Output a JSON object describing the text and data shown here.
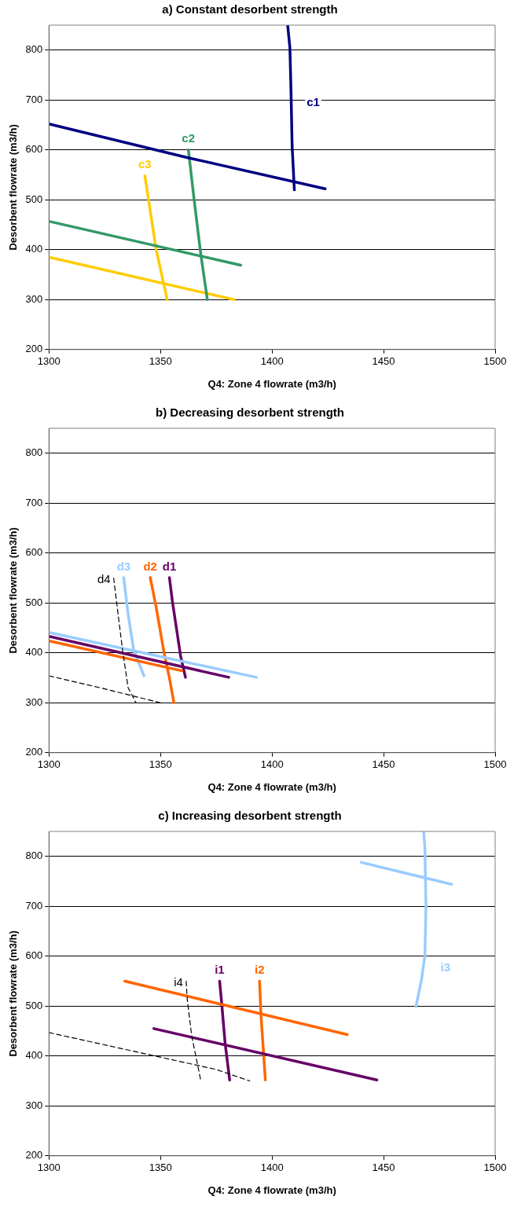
{
  "chart_data": [
    {
      "type": "line",
      "title": "a) Constant desorbent strength",
      "xlabel": "Q4: Zone 4 flowrate (m3/h)",
      "ylabel": "Desorbent flowrate (m3/h)",
      "xlim": [
        1300,
        1500
      ],
      "xticks": [
        1300,
        1350,
        1400,
        1450,
        1500
      ],
      "ylim": [
        200,
        850
      ],
      "yticks": [
        200,
        300,
        400,
        500,
        600,
        700,
        800
      ],
      "grid": "y",
      "legend": false,
      "marker": "none",
      "series": [
        {
          "name": "c1",
          "color": "#000080",
          "x": [
            1407,
            1408,
            1408.5,
            1409,
            1410
          ],
          "values": [
            850,
            805,
            718,
            608,
            520
          ]
        },
        {
          "color": "#000080",
          "x": [
            1300,
            1362.7,
            1423.8
          ],
          "values": [
            652,
            584,
            522
          ]
        },
        {
          "name": "c2",
          "color": "#339966",
          "x": [
            1362.5,
            1365,
            1368,
            1371
          ],
          "values": [
            600,
            503,
            393,
            300
          ]
        },
        {
          "color": "#339966",
          "x": [
            1300,
            1386
          ],
          "values": [
            457,
            369
          ]
        },
        {
          "name": "c3",
          "color": "#ffcc00",
          "x": [
            1343,
            1348,
            1353
          ],
          "values": [
            548,
            402,
            300
          ]
        },
        {
          "color": "#ffcc00",
          "x": [
            1300,
            1383
          ],
          "values": [
            385,
            300
          ]
        }
      ]
    },
    {
      "type": "line",
      "title": "b) Decreasing desorbent strength",
      "xlabel": "Q4: Zone 4 flowrate (m3/h)",
      "ylabel": "Desorbent flowrate (m3/h)",
      "xlim": [
        1300,
        1500
      ],
      "xticks": [
        1300,
        1350,
        1400,
        1450,
        1500
      ],
      "ylim": [
        200,
        850
      ],
      "yticks": [
        200,
        300,
        400,
        500,
        600,
        700,
        800
      ],
      "grid": "y",
      "legend": false,
      "marker": "none",
      "series": [
        {
          "name": "d4",
          "color": "#000000",
          "line_style": "dashed",
          "x": [
            1329,
            1331,
            1333,
            1335.5,
            1339
          ],
          "values": [
            550,
            477,
            405,
            330,
            300
          ]
        },
        {
          "color": "#000000",
          "line_style": "dashed",
          "x": [
            1300,
            1323,
            1350
          ],
          "values": [
            354,
            330,
            300
          ]
        },
        {
          "color": "#99ccff",
          "x": [
            1300,
            1393
          ],
          "values": [
            441,
            351
          ]
        },
        {
          "color": "#660066",
          "x": [
            1300,
            1380.6
          ],
          "values": [
            433,
            351
          ]
        },
        {
          "color": "#ff6600",
          "x": [
            1300,
            1359.6
          ],
          "values": [
            424,
            364
          ]
        },
        {
          "name": "d3",
          "color": "#99ccff",
          "x": [
            1333.5,
            1335.5,
            1338,
            1342.6
          ],
          "values": [
            551,
            477,
            405,
            354
          ]
        },
        {
          "name": "d2",
          "color": "#ff6600",
          "x": [
            1345.4,
            1348,
            1351.6,
            1354,
            1356
          ],
          "values": [
            551,
            493,
            400,
            350,
            300
          ]
        },
        {
          "name": "d1",
          "color": "#660066",
          "x": [
            1354,
            1355.3,
            1359,
            1361.2
          ],
          "values": [
            551,
            504,
            394,
            351
          ]
        }
      ]
    },
    {
      "type": "line",
      "title": "c) Increasing desorbent strength",
      "xlabel": "Q4: Zone 4 flowrate (m3/h)",
      "ylabel": "Desorbent flowrate (m3/h)",
      "xlim": [
        1300,
        1500
      ],
      "xticks": [
        1300,
        1350,
        1400,
        1450,
        1500
      ],
      "ylim": [
        200,
        850
      ],
      "yticks": [
        200,
        300,
        400,
        500,
        600,
        700,
        800
      ],
      "grid": "y",
      "legend": false,
      "marker": "none",
      "series": [
        {
          "name": "i4",
          "color": "#000000",
          "line_style": "dashed",
          "x": [
            1361.5,
            1362,
            1364,
            1368
          ],
          "values": [
            550,
            513,
            440,
            352
          ]
        },
        {
          "color": "#000000",
          "line_style": "dashed",
          "x": [
            1300,
            1375,
            1390
          ],
          "values": [
            447,
            373,
            350
          ]
        },
        {
          "color": "#ff6600",
          "x": [
            1334,
            1433.7
          ],
          "values": [
            550,
            443
          ]
        },
        {
          "color": "#660066",
          "x": [
            1347,
            1447
          ],
          "values": [
            455,
            352
          ]
        },
        {
          "name": "i1",
          "color": "#660066",
          "x": [
            1376.5,
            1377.5,
            1379,
            1381
          ],
          "values": [
            550,
            502,
            424,
            352
          ]
        },
        {
          "name": "i2",
          "color": "#ff6600",
          "x": [
            1394.4,
            1395,
            1397
          ],
          "values": [
            550,
            485,
            352
          ]
        },
        {
          "name": "i3",
          "color": "#99ccff",
          "x": [
            1468,
            1468.5,
            1469,
            1468.5,
            1467,
            1464.5
          ],
          "values": [
            850,
            817,
            700,
            601,
            553,
            499
          ]
        },
        {
          "color": "#99ccff",
          "x": [
            1440,
            1480.5
          ],
          "values": [
            788,
            744
          ]
        }
      ]
    }
  ]
}
